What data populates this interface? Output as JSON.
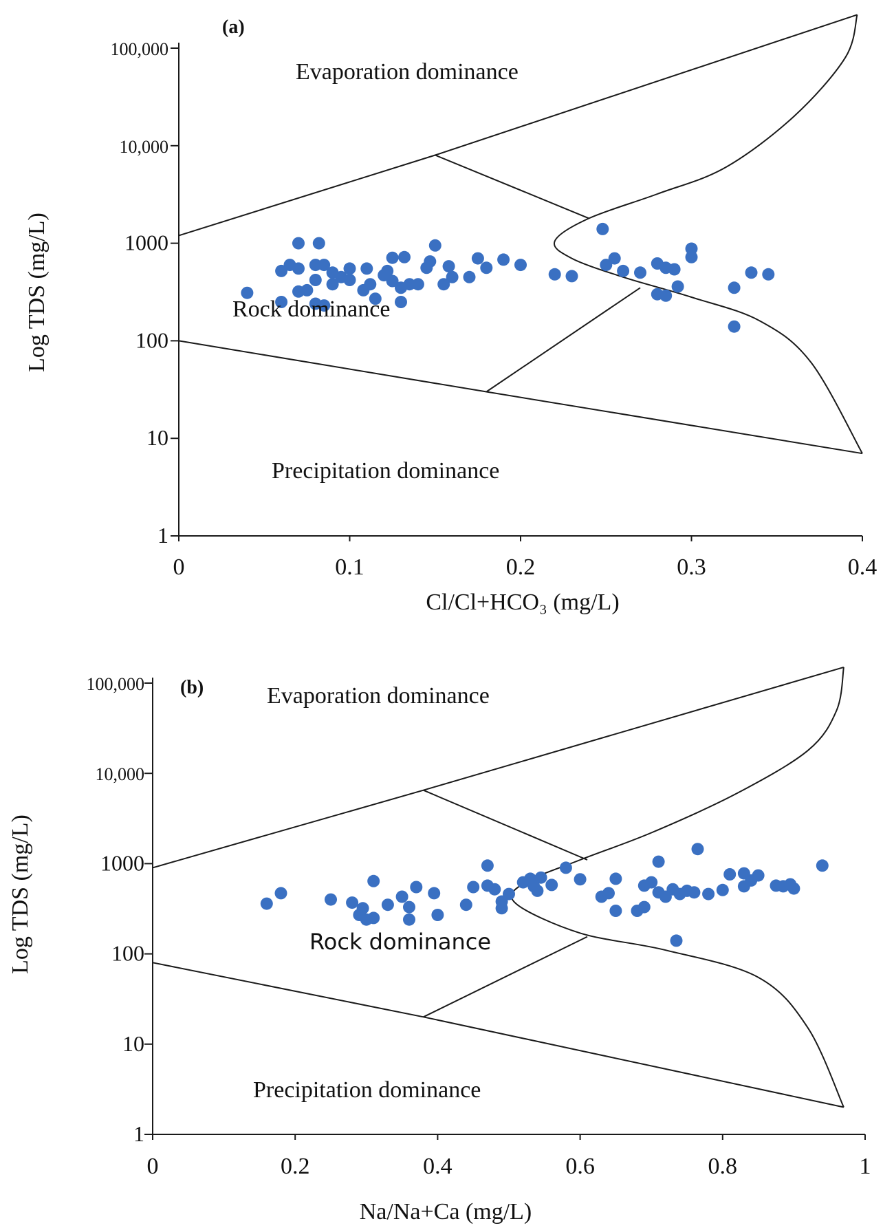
{
  "chart_data": [
    {
      "type": "scatter",
      "panel_label": "(a)",
      "xlabel": "Cl/Cl+HCO₃ (mg/L)",
      "ylabel": "Log TDS (mg/L)",
      "xlim": [
        0,
        0.4
      ],
      "ylim": [
        1,
        100000
      ],
      "yscale": "log",
      "x_ticks": [
        "0",
        "0.1",
        "0.2",
        "0.3",
        "0.4"
      ],
      "y_ticks": [
        "1",
        "10",
        "100",
        "1000",
        "10,000",
        "100,000"
      ],
      "regions": [
        "Evaporation dominance",
        "Rock dominance",
        "Precipitation dominance"
      ],
      "marker_color": "#3a70c2",
      "boundaries": {
        "upper_line": [
          [
            0,
            1200
          ],
          [
            0.15,
            8000
          ],
          [
            0.397,
            220000
          ]
        ],
        "lower_line": [
          [
            0,
            100
          ],
          [
            0.18,
            30
          ],
          [
            0.4,
            7
          ]
        ],
        "curve": [
          [
            0.397,
            220000
          ],
          [
            0.39,
            80000
          ],
          [
            0.36,
            20000
          ],
          [
            0.32,
            6000
          ],
          [
            0.28,
            3200
          ],
          [
            0.24,
            1800
          ],
          [
            0.22,
            1050
          ],
          [
            0.23,
            700
          ],
          [
            0.26,
            450
          ],
          [
            0.3,
            280
          ],
          [
            0.34,
            160
          ],
          [
            0.37,
            60
          ],
          [
            0.4,
            7
          ]
        ],
        "split_upper": [
          [
            0.15,
            8000
          ],
          [
            0.24,
            1800
          ]
        ],
        "split_lower": [
          [
            0.18,
            30
          ],
          [
            0.27,
            350
          ]
        ]
      },
      "points": [
        [
          0.04,
          310
        ],
        [
          0.06,
          520
        ],
        [
          0.06,
          250
        ],
        [
          0.065,
          600
        ],
        [
          0.07,
          1000
        ],
        [
          0.07,
          550
        ],
        [
          0.07,
          320
        ],
        [
          0.075,
          330
        ],
        [
          0.08,
          600
        ],
        [
          0.08,
          420
        ],
        [
          0.08,
          240
        ],
        [
          0.082,
          1000
        ],
        [
          0.085,
          600
        ],
        [
          0.085,
          230
        ],
        [
          0.09,
          500
        ],
        [
          0.09,
          380
        ],
        [
          0.095,
          450
        ],
        [
          0.1,
          550
        ],
        [
          0.1,
          420
        ],
        [
          0.108,
          330
        ],
        [
          0.11,
          550
        ],
        [
          0.112,
          380
        ],
        [
          0.115,
          270
        ],
        [
          0.12,
          470
        ],
        [
          0.122,
          520
        ],
        [
          0.125,
          710
        ],
        [
          0.125,
          410
        ],
        [
          0.13,
          350
        ],
        [
          0.13,
          250
        ],
        [
          0.132,
          720
        ],
        [
          0.135,
          380
        ],
        [
          0.14,
          380
        ],
        [
          0.145,
          560
        ],
        [
          0.147,
          650
        ],
        [
          0.15,
          950
        ],
        [
          0.155,
          380
        ],
        [
          0.158,
          580
        ],
        [
          0.16,
          450
        ],
        [
          0.17,
          450
        ],
        [
          0.175,
          700
        ],
        [
          0.18,
          560
        ],
        [
          0.19,
          680
        ],
        [
          0.2,
          600
        ],
        [
          0.22,
          480
        ],
        [
          0.23,
          460
        ],
        [
          0.248,
          1400
        ],
        [
          0.25,
          600
        ],
        [
          0.255,
          700
        ],
        [
          0.26,
          520
        ],
        [
          0.27,
          500
        ],
        [
          0.28,
          620
        ],
        [
          0.28,
          300
        ],
        [
          0.285,
          560
        ],
        [
          0.285,
          290
        ],
        [
          0.29,
          540
        ],
        [
          0.292,
          360
        ],
        [
          0.3,
          880
        ],
        [
          0.3,
          720
        ],
        [
          0.325,
          350
        ],
        [
          0.325,
          140
        ],
        [
          0.335,
          500
        ],
        [
          0.345,
          480
        ]
      ]
    },
    {
      "type": "scatter",
      "panel_label": "(b)",
      "xlabel": "Na/Na+Ca (mg/L)",
      "ylabel": "Log TDS (mg/L)",
      "xlim": [
        0,
        1
      ],
      "ylim": [
        1,
        100000
      ],
      "yscale": "log",
      "x_ticks": [
        "0",
        "0.2",
        "0.4",
        "0.6",
        "0.8",
        "1"
      ],
      "y_ticks": [
        "1",
        "10",
        "100",
        "1000",
        "10,000",
        "100,000"
      ],
      "regions": [
        "Evaporation dominance",
        "Rock dominance",
        "Precipitation dominance"
      ],
      "marker_color": "#3a70c2",
      "boundaries": {
        "upper_line": [
          [
            0,
            900
          ],
          [
            0.38,
            6500
          ],
          [
            0.97,
            150000
          ]
        ],
        "lower_line": [
          [
            0,
            80
          ],
          [
            0.38,
            20
          ],
          [
            0.97,
            2
          ]
        ],
        "curve": [
          [
            0.97,
            150000
          ],
          [
            0.96,
            50000
          ],
          [
            0.92,
            18000
          ],
          [
            0.82,
            6000
          ],
          [
            0.7,
            2200
          ],
          [
            0.6,
            1100
          ],
          [
            0.52,
            600
          ],
          [
            0.51,
            360
          ],
          [
            0.6,
            170
          ],
          [
            0.72,
            110
          ],
          [
            0.85,
            55
          ],
          [
            0.92,
            15
          ],
          [
            0.97,
            2
          ]
        ],
        "split_upper": [
          [
            0.38,
            6500
          ],
          [
            0.61,
            1100
          ]
        ],
        "split_lower": [
          [
            0.38,
            20
          ],
          [
            0.61,
            155
          ]
        ]
      },
      "points": [
        [
          0.16,
          360
        ],
        [
          0.18,
          470
        ],
        [
          0.25,
          400
        ],
        [
          0.28,
          370
        ],
        [
          0.29,
          270
        ],
        [
          0.295,
          320
        ],
        [
          0.3,
          240
        ],
        [
          0.31,
          640
        ],
        [
          0.31,
          250
        ],
        [
          0.33,
          350
        ],
        [
          0.35,
          430
        ],
        [
          0.36,
          330
        ],
        [
          0.36,
          240
        ],
        [
          0.37,
          550
        ],
        [
          0.395,
          470
        ],
        [
          0.4,
          270
        ],
        [
          0.44,
          350
        ],
        [
          0.45,
          550
        ],
        [
          0.47,
          950
        ],
        [
          0.47,
          570
        ],
        [
          0.48,
          520
        ],
        [
          0.49,
          380
        ],
        [
          0.49,
          320
        ],
        [
          0.5,
          460
        ],
        [
          0.52,
          620
        ],
        [
          0.53,
          680
        ],
        [
          0.535,
          560
        ],
        [
          0.54,
          500
        ],
        [
          0.545,
          700
        ],
        [
          0.56,
          580
        ],
        [
          0.58,
          900
        ],
        [
          0.6,
          670
        ],
        [
          0.63,
          430
        ],
        [
          0.64,
          470
        ],
        [
          0.65,
          680
        ],
        [
          0.65,
          300
        ],
        [
          0.68,
          300
        ],
        [
          0.69,
          330
        ],
        [
          0.69,
          570
        ],
        [
          0.7,
          620
        ],
        [
          0.71,
          480
        ],
        [
          0.71,
          1050
        ],
        [
          0.72,
          430
        ],
        [
          0.73,
          520
        ],
        [
          0.735,
          140
        ],
        [
          0.74,
          460
        ],
        [
          0.75,
          500
        ],
        [
          0.76,
          480
        ],
        [
          0.765,
          1450
        ],
        [
          0.78,
          460
        ],
        [
          0.8,
          510
        ],
        [
          0.81,
          760
        ],
        [
          0.83,
          560
        ],
        [
          0.83,
          780
        ],
        [
          0.84,
          650
        ],
        [
          0.85,
          740
        ],
        [
          0.875,
          570
        ],
        [
          0.885,
          560
        ],
        [
          0.895,
          590
        ],
        [
          0.9,
          530
        ],
        [
          0.94,
          950
        ]
      ]
    }
  ]
}
